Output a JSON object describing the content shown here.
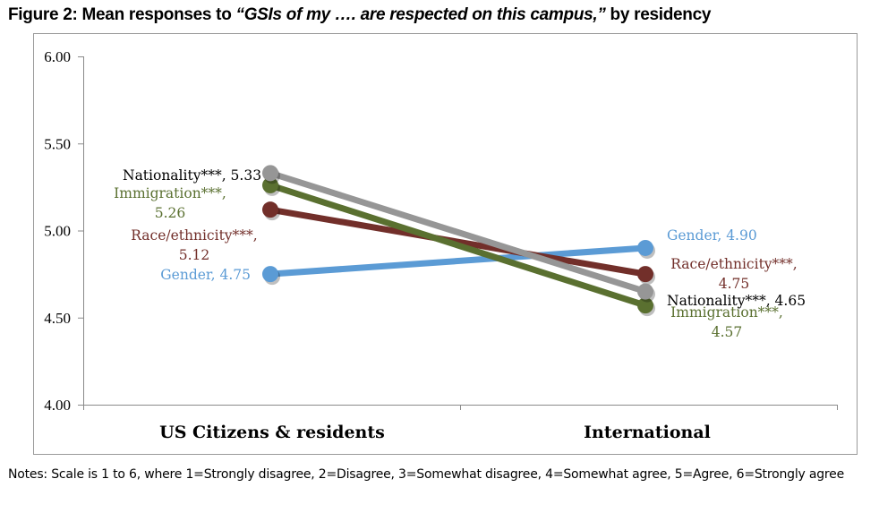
{
  "title": {
    "prefix": "Figure 2: Mean responses to ",
    "italic": "“GSIs of my …. are respected on this campus,”",
    "suffix": " by residency"
  },
  "notes": "Notes: Scale is 1 to 6, where 1=Strongly disagree, 2=Disagree, 3=Somewhat disagree, 4=Somewhat agree, 5=Agree, 6=Strongly agree",
  "chart_data": {
    "type": "line",
    "title": "Figure 2: Mean responses to “GSIs of my …. are respected on this campus,” by residency",
    "categories": [
      "US Citizens & residents",
      "International"
    ],
    "ylim": [
      4.0,
      6.0
    ],
    "yticks": [
      "4.00",
      "4.50",
      "5.00",
      "5.50",
      "6.00"
    ],
    "series": [
      {
        "name": "Gender",
        "color": "#5B9BD5",
        "values": [
          4.75,
          4.9
        ],
        "labels": [
          [
            "Gender, 4.75"
          ],
          [
            "Gender, 4.90"
          ]
        ]
      },
      {
        "name": "Race/ethnicity***",
        "color": "#722F2A",
        "values": [
          5.12,
          4.75
        ],
        "labels": [
          [
            "Race/ethnicity***,",
            "5.12"
          ],
          [
            "Race/ethnicity***,",
            "4.75"
          ]
        ]
      },
      {
        "name": "Nationality***",
        "color": "#969696",
        "label_color": "#000000",
        "values": [
          5.33,
          4.65
        ],
        "labels": [
          [
            "Nationality***, 5.33"
          ],
          [
            "Nationality***, 4.65"
          ]
        ]
      },
      {
        "name": "Immigration***",
        "color": "#5A7030",
        "values": [
          5.26,
          4.57
        ],
        "labels": [
          [
            "Immigration***,",
            "5.26"
          ],
          [
            "Immigration***,",
            "4.57"
          ]
        ]
      }
    ]
  }
}
